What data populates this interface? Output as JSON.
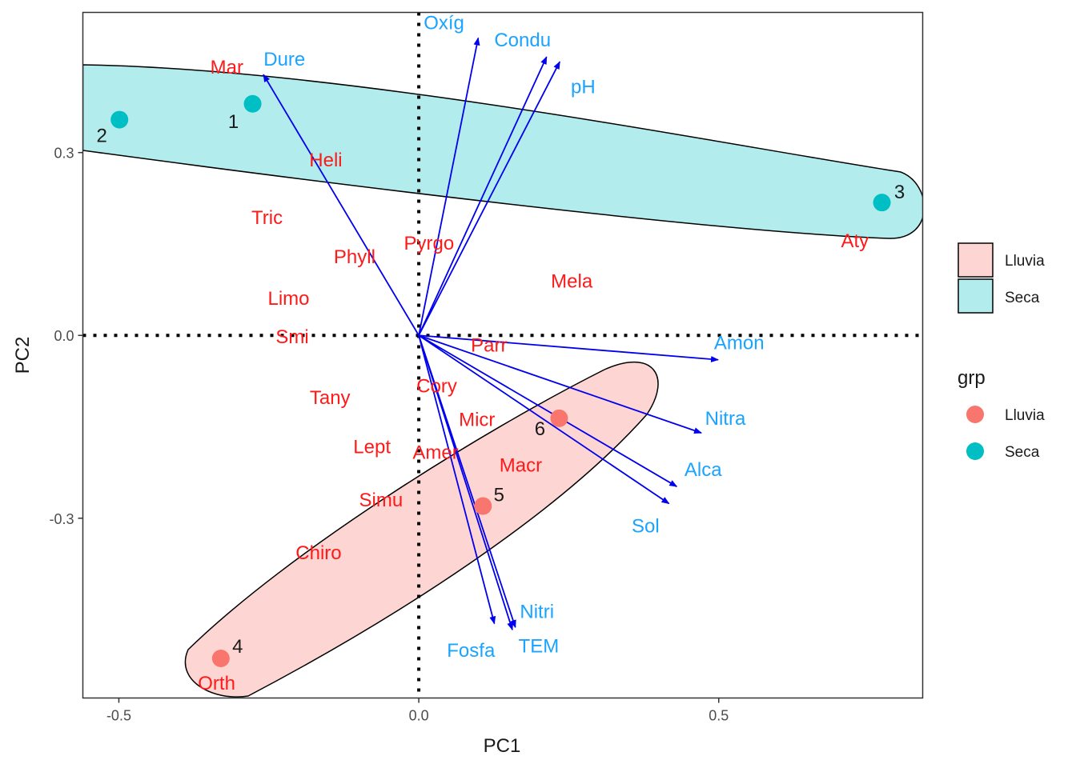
{
  "chart_data": {
    "type": "scatter",
    "subtype": "pca-biplot",
    "xlabel": "PC1",
    "ylabel": "PC2",
    "xlim": [
      -0.56,
      0.84
    ],
    "ylim": [
      -0.595,
      0.53
    ],
    "x_ticks": [
      {
        "value": -0.5,
        "label": "-0.5"
      },
      {
        "value": 0.0,
        "label": "0.0"
      },
      {
        "value": 0.5,
        "label": "0.5"
      }
    ],
    "y_ticks": [
      {
        "value": 0.3,
        "label": "0.3"
      },
      {
        "value": 0.0,
        "label": "0.0"
      },
      {
        "value": -0.3,
        "label": "-0.3"
      }
    ],
    "grid": false,
    "reference_lines": {
      "x": 0,
      "y": 0,
      "style": "dotted"
    },
    "colors": {
      "Lluvia": "#F8766D",
      "Seca": "#00BFC4",
      "species_labels": "#ff1a1a",
      "variable_labels": "#1aa3ff",
      "arrows": "#0000ee"
    },
    "sites": [
      {
        "label": "1",
        "group": "Seca",
        "x": -0.277,
        "y": 0.38
      },
      {
        "label": "2",
        "group": "Seca",
        "x": -0.499,
        "y": 0.354
      },
      {
        "label": "3",
        "group": "Seca",
        "x": 0.772,
        "y": 0.218
      },
      {
        "label": "4",
        "group": "Lluvia",
        "x": -0.33,
        "y": -0.53
      },
      {
        "label": "5",
        "group": "Lluvia",
        "x": 0.107,
        "y": -0.28
      },
      {
        "label": "6",
        "group": "Lluvia",
        "x": 0.234,
        "y": -0.136
      }
    ],
    "species": [
      {
        "label": "Mar",
        "x": -0.32,
        "y": 0.44
      },
      {
        "label": "Heli",
        "x": -0.155,
        "y": 0.288
      },
      {
        "label": "Tric",
        "x": -0.253,
        "y": 0.193
      },
      {
        "label": "Phyll",
        "x": -0.107,
        "y": 0.129
      },
      {
        "label": "Pyrgo",
        "x": 0.017,
        "y": 0.151
      },
      {
        "label": "Mela",
        "x": 0.255,
        "y": 0.089
      },
      {
        "label": "Aty",
        "x": 0.727,
        "y": 0.155
      },
      {
        "label": "Limo",
        "x": -0.217,
        "y": 0.061
      },
      {
        "label": "Smi",
        "x": -0.211,
        "y": -0.002
      },
      {
        "label": "Parr",
        "x": 0.117,
        "y": -0.016
      },
      {
        "label": "Tany",
        "x": -0.148,
        "y": -0.102
      },
      {
        "label": "Cory",
        "x": 0.03,
        "y": -0.083
      },
      {
        "label": "Micr",
        "x": 0.097,
        "y": -0.138
      },
      {
        "label": "Lept",
        "x": -0.078,
        "y": -0.183
      },
      {
        "label": "Amer",
        "x": 0.028,
        "y": -0.192
      },
      {
        "label": "Macr",
        "x": 0.17,
        "y": -0.213
      },
      {
        "label": "Simu",
        "x": -0.063,
        "y": -0.27
      },
      {
        "label": "Chiro",
        "x": -0.167,
        "y": -0.357
      },
      {
        "label": "Orth",
        "x": -0.337,
        "y": -0.571
      }
    ],
    "variables": [
      {
        "label": "Oxíg",
        "x": 0.099,
        "y": 0.488,
        "label_x": 0.042,
        "label_y": 0.513
      },
      {
        "label": "Condu",
        "x": 0.213,
        "y": 0.457,
        "label_x": 0.173,
        "label_y": 0.485
      },
      {
        "label": "pH",
        "x": 0.235,
        "y": 0.449,
        "label_x": 0.274,
        "label_y": 0.408
      },
      {
        "label": "Dure",
        "x": -0.259,
        "y": 0.428,
        "label_x": -0.224,
        "label_y": 0.453
      },
      {
        "label": "Amon",
        "x": 0.499,
        "y": -0.04,
        "label_x": 0.534,
        "label_y": -0.012
      },
      {
        "label": "Nitra",
        "x": 0.471,
        "y": -0.16,
        "label_x": 0.511,
        "label_y": -0.136
      },
      {
        "label": "Alca",
        "x": 0.43,
        "y": -0.248,
        "label_x": 0.474,
        "label_y": -0.22
      },
      {
        "label": "Sol",
        "x": 0.417,
        "y": -0.276,
        "label_x": 0.378,
        "label_y": -0.313
      },
      {
        "label": "Nitri",
        "x": 0.161,
        "y": -0.479,
        "label_x": 0.197,
        "label_y": -0.453
      },
      {
        "label": "TEM",
        "x": 0.156,
        "y": -0.483,
        "label_x": 0.2,
        "label_y": -0.51
      },
      {
        "label": "Fosfa",
        "x": 0.126,
        "y": -0.473,
        "label_x": 0.087,
        "label_y": -0.517
      }
    ],
    "legend": {
      "position": "right",
      "fill_title": "",
      "fill_entries": [
        "Lluvia",
        "Seca"
      ],
      "color_title": "grp",
      "color_entries": [
        "Lluvia",
        "Seca"
      ]
    }
  }
}
